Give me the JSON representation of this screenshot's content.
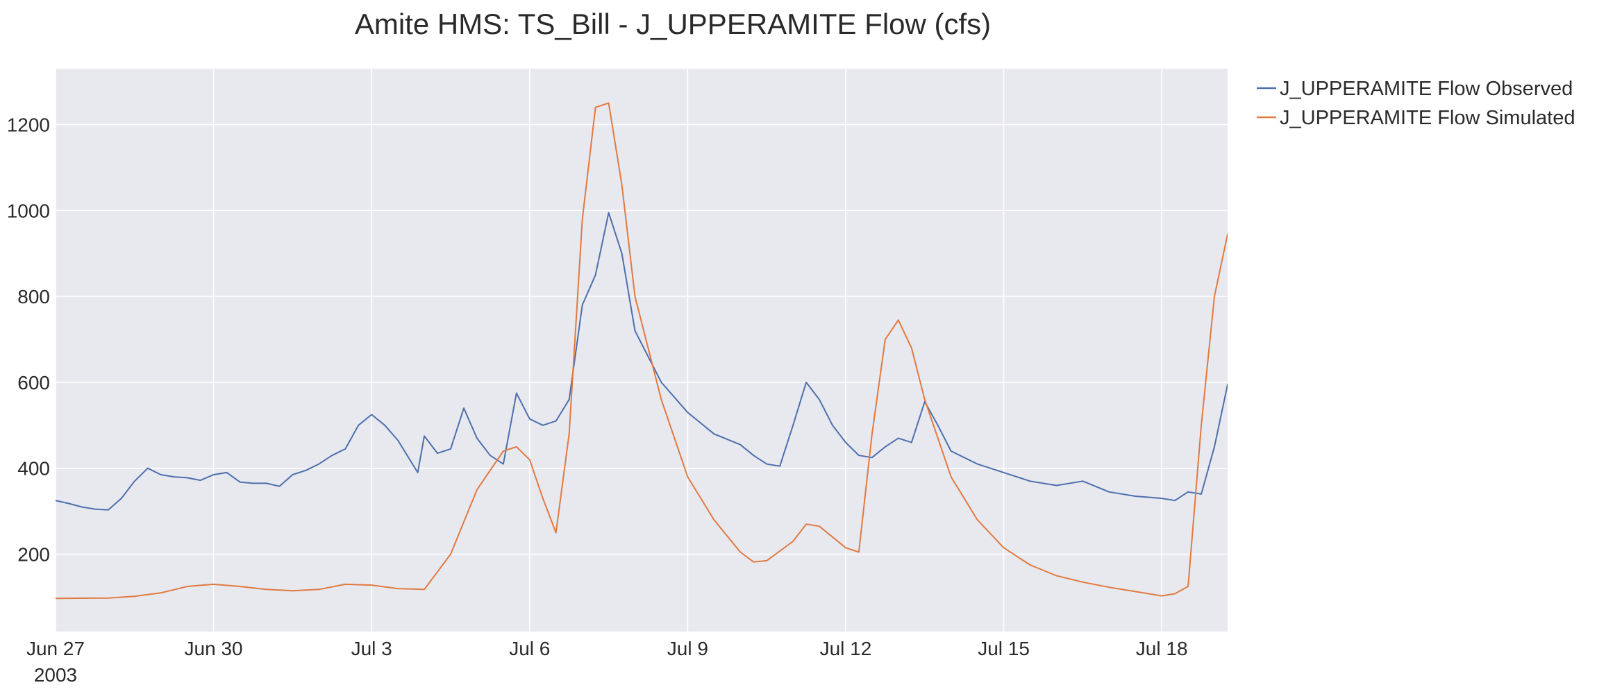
{
  "chart_data": {
    "type": "line",
    "title": "Amite HMS: TS_Bill - J_UPPERAMITE Flow (cfs)",
    "xlabel": "",
    "ylabel": "",
    "x_range": [
      "2003-06-27",
      "2003-07-19 06:00"
    ],
    "ylim": [
      20,
      1330
    ],
    "y_ticks": [
      200,
      400,
      600,
      800,
      1000,
      1200
    ],
    "x_ticks": [
      {
        "date": "2003-06-27",
        "label": "Jun 27",
        "sublabel": "2003"
      },
      {
        "date": "2003-06-30",
        "label": "Jun 30",
        "sublabel": ""
      },
      {
        "date": "2003-07-03",
        "label": "Jul 3",
        "sublabel": ""
      },
      {
        "date": "2003-07-06",
        "label": "Jul 6",
        "sublabel": ""
      },
      {
        "date": "2003-07-09",
        "label": "Jul 9",
        "sublabel": ""
      },
      {
        "date": "2003-07-12",
        "label": "Jul 12",
        "sublabel": ""
      },
      {
        "date": "2003-07-15",
        "label": "Jul 15",
        "sublabel": ""
      },
      {
        "date": "2003-07-18",
        "label": "Jul 18",
        "sublabel": ""
      }
    ],
    "grid": true,
    "legend_position": "top-right, outside plot",
    "background_color": "#e8e8ef",
    "series": [
      {
        "name": "J_UPPERAMITE Flow Observed",
        "color": "#4c6fac",
        "x": [
          "2003-06-27 00:00",
          "2003-06-27 06:00",
          "2003-06-27 12:00",
          "2003-06-27 18:00",
          "2003-06-28 00:00",
          "2003-06-28 06:00",
          "2003-06-28 12:00",
          "2003-06-28 18:00",
          "2003-06-29 00:00",
          "2003-06-29 06:00",
          "2003-06-29 12:00",
          "2003-06-29 18:00",
          "2003-06-30 00:00",
          "2003-06-30 06:00",
          "2003-06-30 12:00",
          "2003-06-30 18:00",
          "2003-07-01 00:00",
          "2003-07-01 06:00",
          "2003-07-01 12:00",
          "2003-07-01 18:00",
          "2003-07-02 00:00",
          "2003-07-02 06:00",
          "2003-07-02 12:00",
          "2003-07-02 18:00",
          "2003-07-03 00:00",
          "2003-07-03 06:00",
          "2003-07-03 12:00",
          "2003-07-03 21:00",
          "2003-07-04 00:00",
          "2003-07-04 06:00",
          "2003-07-04 12:00",
          "2003-07-04 18:00",
          "2003-07-05 00:00",
          "2003-07-05 06:00",
          "2003-07-05 12:00",
          "2003-07-05 18:00",
          "2003-07-06 00:00",
          "2003-07-06 06:00",
          "2003-07-06 12:00",
          "2003-07-06 18:00",
          "2003-07-07 00:00",
          "2003-07-07 06:00",
          "2003-07-07 12:00",
          "2003-07-07 18:00",
          "2003-07-08 00:00",
          "2003-07-08 12:00",
          "2003-07-09 00:00",
          "2003-07-09 12:00",
          "2003-07-10 00:00",
          "2003-07-10 06:00",
          "2003-07-10 12:00",
          "2003-07-10 18:00",
          "2003-07-11 00:00",
          "2003-07-11 06:00",
          "2003-07-11 12:00",
          "2003-07-11 18:00",
          "2003-07-12 00:00",
          "2003-07-12 06:00",
          "2003-07-12 12:00",
          "2003-07-12 18:00",
          "2003-07-13 00:00",
          "2003-07-13 06:00",
          "2003-07-13 12:00",
          "2003-07-13 18:00",
          "2003-07-14 00:00",
          "2003-07-14 12:00",
          "2003-07-15 00:00",
          "2003-07-15 12:00",
          "2003-07-16 00:00",
          "2003-07-16 12:00",
          "2003-07-17 00:00",
          "2003-07-17 12:00",
          "2003-07-18 00:00",
          "2003-07-18 06:00",
          "2003-07-18 12:00",
          "2003-07-18 18:00",
          "2003-07-19 00:00",
          "2003-07-19 06:00"
        ],
        "y": [
          325,
          318,
          310,
          305,
          303,
          330,
          370,
          400,
          385,
          380,
          378,
          372,
          385,
          390,
          368,
          365,
          365,
          358,
          385,
          395,
          410,
          430,
          445,
          500,
          525,
          500,
          465,
          390,
          475,
          435,
          445,
          540,
          470,
          430,
          410,
          575,
          515,
          500,
          510,
          560,
          780,
          850,
          995,
          900,
          720,
          600,
          530,
          480,
          455,
          430,
          410,
          405,
          500,
          600,
          560,
          500,
          460,
          430,
          425,
          450,
          470,
          460,
          555,
          500,
          440,
          410,
          390,
          370,
          360,
          370,
          345,
          335,
          330,
          325,
          345,
          340,
          450,
          595
        ]
      },
      {
        "name": "J_UPPERAMITE Flow Simulated",
        "color": "#e07a3f",
        "x": [
          "2003-06-27 00:00",
          "2003-06-28 00:00",
          "2003-06-28 12:00",
          "2003-06-29 00:00",
          "2003-06-29 12:00",
          "2003-06-30 00:00",
          "2003-06-30 12:00",
          "2003-07-01 00:00",
          "2003-07-01 12:00",
          "2003-07-02 00:00",
          "2003-07-02 12:00",
          "2003-07-03 00:00",
          "2003-07-03 12:00",
          "2003-07-04 00:00",
          "2003-07-04 12:00",
          "2003-07-05 00:00",
          "2003-07-05 12:00",
          "2003-07-05 18:00",
          "2003-07-06 00:00",
          "2003-07-06 06:00",
          "2003-07-06 12:00",
          "2003-07-06 18:00",
          "2003-07-07 00:00",
          "2003-07-07 06:00",
          "2003-07-07 12:00",
          "2003-07-07 18:00",
          "2003-07-08 00:00",
          "2003-07-08 12:00",
          "2003-07-09 00:00",
          "2003-07-09 12:00",
          "2003-07-10 00:00",
          "2003-07-10 06:00",
          "2003-07-10 12:00",
          "2003-07-11 00:00",
          "2003-07-11 06:00",
          "2003-07-11 12:00",
          "2003-07-12 00:00",
          "2003-07-12 06:00",
          "2003-07-12 12:00",
          "2003-07-12 18:00",
          "2003-07-13 00:00",
          "2003-07-13 06:00",
          "2003-07-13 12:00",
          "2003-07-14 00:00",
          "2003-07-14 12:00",
          "2003-07-15 00:00",
          "2003-07-15 12:00",
          "2003-07-16 00:00",
          "2003-07-16 12:00",
          "2003-07-17 00:00",
          "2003-07-17 12:00",
          "2003-07-18 00:00",
          "2003-07-18 06:00",
          "2003-07-18 12:00",
          "2003-07-18 18:00",
          "2003-07-19 00:00",
          "2003-07-19 06:00"
        ],
        "y": [
          97,
          98,
          102,
          110,
          125,
          130,
          125,
          118,
          115,
          118,
          130,
          128,
          120,
          118,
          200,
          350,
          440,
          450,
          420,
          330,
          250,
          480,
          980,
          1240,
          1250,
          1060,
          800,
          560,
          380,
          280,
          205,
          182,
          185,
          230,
          270,
          265,
          215,
          205,
          480,
          700,
          745,
          680,
          560,
          380,
          280,
          215,
          175,
          150,
          135,
          123,
          113,
          103,
          108,
          125,
          500,
          800,
          945
        ]
      }
    ]
  }
}
